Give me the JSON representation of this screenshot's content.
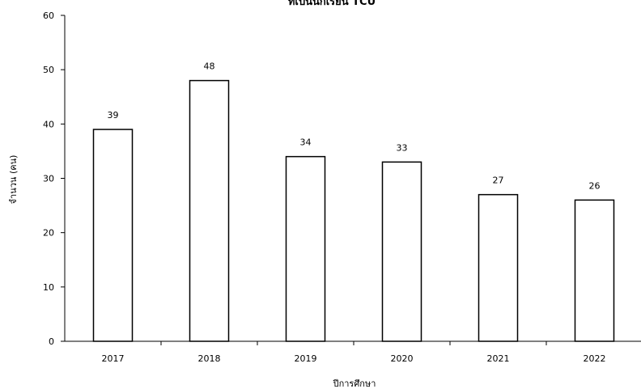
{
  "chart_data": {
    "type": "bar",
    "title": "ที่เป็นนักเรียน TCU",
    "xlabel": "ปีการศึกษา",
    "ylabel": "จำนวน (คน)",
    "categories": [
      "2017",
      "2018",
      "2019",
      "2020",
      "2021",
      "2022"
    ],
    "values": [
      39,
      48,
      34,
      33,
      27,
      26
    ],
    "data_labels": [
      "39",
      "48",
      "34",
      "33",
      "27",
      "26"
    ],
    "ylim": [
      0,
      60
    ],
    "yticks": [
      "0",
      "10",
      "20",
      "30",
      "40",
      "50",
      "60"
    ],
    "grid": false,
    "bar_fill": "#ffffff",
    "bar_stroke": "#000000"
  }
}
